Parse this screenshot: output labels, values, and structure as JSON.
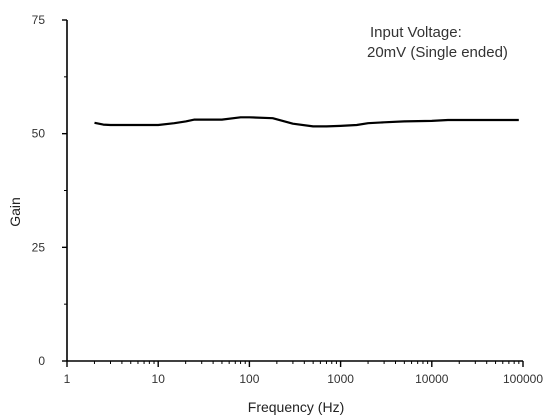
{
  "chart_data": {
    "type": "line",
    "title": "",
    "xlabel": "Frequency (Hz)",
    "ylabel": "Gain",
    "x_scale": "log",
    "xlim": [
      1,
      100000
    ],
    "ylim": [
      0,
      75
    ],
    "x_ticks": [
      1,
      10,
      100,
      1000,
      10000,
      100000
    ],
    "x_tick_labels": [
      "1",
      "10",
      "100",
      "1000",
      "10000",
      "100000"
    ],
    "y_ticks": [
      0,
      25,
      50,
      75
    ],
    "y_tick_labels": [
      "0",
      "25",
      "50",
      "75"
    ],
    "grid": false,
    "annotation": [
      "Input Voltage:",
      "20mV (Single ended)"
    ],
    "series": [
      {
        "x": [
          2,
          2.5,
          3,
          5,
          10,
          15,
          20,
          25,
          50,
          80,
          100,
          180,
          300,
          500,
          700,
          1000,
          1500,
          2000,
          3000,
          5000,
          10000,
          15000,
          20000,
          50000,
          90000
        ],
        "y": [
          52.4,
          52.0,
          51.9,
          51.9,
          51.9,
          52.3,
          52.7,
          53.1,
          53.1,
          53.6,
          53.6,
          53.4,
          52.2,
          51.6,
          51.6,
          51.7,
          51.9,
          52.3,
          52.5,
          52.7,
          52.8,
          53.0,
          53.0,
          53.0,
          53.0
        ]
      }
    ]
  }
}
